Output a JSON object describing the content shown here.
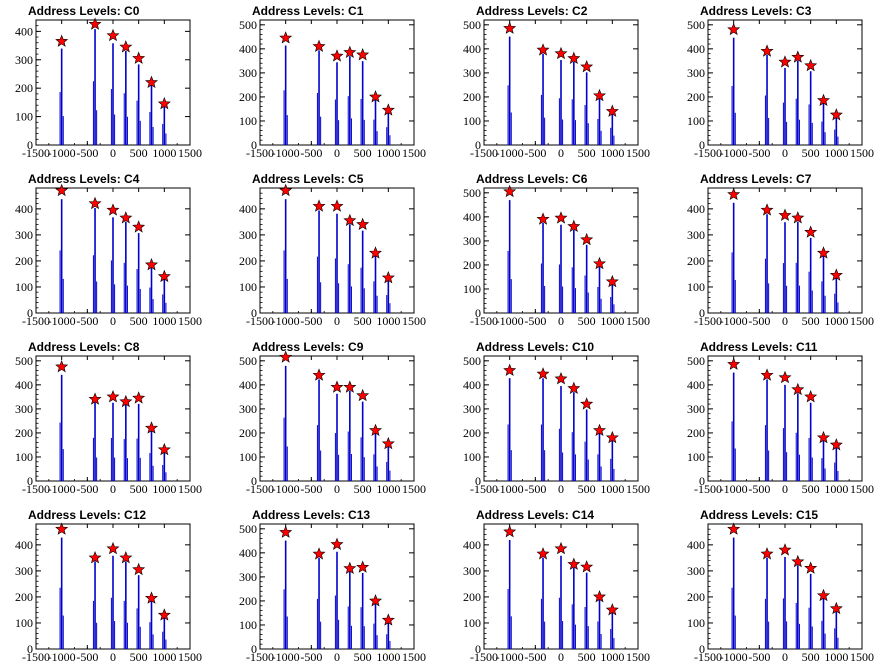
{
  "chart_data": [
    {
      "type": "bar",
      "title": "Address Levels: C0",
      "peaks": [
        {
          "x": -1000,
          "y": 365
        },
        {
          "x": -350,
          "y": 425
        },
        {
          "x": 0,
          "y": 385
        },
        {
          "x": 250,
          "y": 345
        },
        {
          "x": 500,
          "y": 305
        },
        {
          "x": 750,
          "y": 220
        },
        {
          "x": 1000,
          "y": 145
        }
      ],
      "ylim": [
        0,
        440
      ],
      "yticks": [
        0,
        100,
        200,
        300,
        400
      ]
    },
    {
      "type": "bar",
      "title": "Address Levels: C1",
      "peaks": [
        {
          "x": -1000,
          "y": 445
        },
        {
          "x": -350,
          "y": 410
        },
        {
          "x": 0,
          "y": 370
        },
        {
          "x": 250,
          "y": 385
        },
        {
          "x": 500,
          "y": 375
        },
        {
          "x": 750,
          "y": 200
        },
        {
          "x": 1000,
          "y": 145
        }
      ],
      "ylim": [
        0,
        520
      ],
      "yticks": [
        0,
        100,
        200,
        300,
        400,
        500
      ]
    },
    {
      "type": "bar",
      "title": "Address Levels: C2",
      "peaks": [
        {
          "x": -1000,
          "y": 485
        },
        {
          "x": -350,
          "y": 395
        },
        {
          "x": 0,
          "y": 380
        },
        {
          "x": 250,
          "y": 360
        },
        {
          "x": 500,
          "y": 325
        },
        {
          "x": 750,
          "y": 205
        },
        {
          "x": 1000,
          "y": 140
        }
      ],
      "ylim": [
        0,
        520
      ],
      "yticks": [
        0,
        100,
        200,
        300,
        400,
        500
      ]
    },
    {
      "type": "bar",
      "title": "Address Levels: C3",
      "peaks": [
        {
          "x": -1000,
          "y": 480
        },
        {
          "x": -350,
          "y": 390
        },
        {
          "x": 0,
          "y": 345
        },
        {
          "x": 250,
          "y": 365
        },
        {
          "x": 500,
          "y": 330
        },
        {
          "x": 750,
          "y": 185
        },
        {
          "x": 1000,
          "y": 125
        }
      ],
      "ylim": [
        0,
        520
      ],
      "yticks": [
        0,
        100,
        200,
        300,
        400,
        500
      ]
    },
    {
      "type": "bar",
      "title": "Address Levels: C4",
      "peaks": [
        {
          "x": -1000,
          "y": 470
        },
        {
          "x": -350,
          "y": 420
        },
        {
          "x": 0,
          "y": 395
        },
        {
          "x": 250,
          "y": 365
        },
        {
          "x": 500,
          "y": 330
        },
        {
          "x": 750,
          "y": 185
        },
        {
          "x": 1000,
          "y": 140
        }
      ],
      "ylim": [
        0,
        480
      ],
      "yticks": [
        0,
        100,
        200,
        300,
        400
      ]
    },
    {
      "type": "bar",
      "title": "Address Levels: C5",
      "peaks": [
        {
          "x": -1000,
          "y": 470
        },
        {
          "x": -350,
          "y": 410
        },
        {
          "x": 0,
          "y": 410
        },
        {
          "x": 250,
          "y": 355
        },
        {
          "x": 500,
          "y": 340
        },
        {
          "x": 750,
          "y": 230
        },
        {
          "x": 1000,
          "y": 135
        }
      ],
      "ylim": [
        0,
        480
      ],
      "yticks": [
        0,
        100,
        200,
        300,
        400
      ]
    },
    {
      "type": "bar",
      "title": "Address Levels: C6",
      "peaks": [
        {
          "x": -1000,
          "y": 505
        },
        {
          "x": -350,
          "y": 390
        },
        {
          "x": 0,
          "y": 395
        },
        {
          "x": 250,
          "y": 360
        },
        {
          "x": 500,
          "y": 305
        },
        {
          "x": 750,
          "y": 205
        },
        {
          "x": 1000,
          "y": 130
        }
      ],
      "ylim": [
        0,
        520
      ],
      "yticks": [
        0,
        100,
        200,
        300,
        400,
        500
      ]
    },
    {
      "type": "bar",
      "title": "Address Levels: C7",
      "peaks": [
        {
          "x": -1000,
          "y": 455
        },
        {
          "x": -350,
          "y": 395
        },
        {
          "x": 0,
          "y": 375
        },
        {
          "x": 250,
          "y": 365
        },
        {
          "x": 500,
          "y": 310
        },
        {
          "x": 750,
          "y": 230
        },
        {
          "x": 1000,
          "y": 145
        }
      ],
      "ylim": [
        0,
        480
      ],
      "yticks": [
        0,
        100,
        200,
        300,
        400
      ]
    },
    {
      "type": "bar",
      "title": "Address Levels: C8",
      "peaks": [
        {
          "x": -1000,
          "y": 475
        },
        {
          "x": -350,
          "y": 340
        },
        {
          "x": 0,
          "y": 350
        },
        {
          "x": 250,
          "y": 330
        },
        {
          "x": 500,
          "y": 345
        },
        {
          "x": 750,
          "y": 220
        },
        {
          "x": 1000,
          "y": 130
        }
      ],
      "ylim": [
        0,
        520
      ],
      "yticks": [
        0,
        100,
        200,
        300,
        400,
        500
      ]
    },
    {
      "type": "bar",
      "title": "Address Levels: C9",
      "peaks": [
        {
          "x": -1000,
          "y": 515
        },
        {
          "x": -350,
          "y": 440
        },
        {
          "x": 0,
          "y": 390
        },
        {
          "x": 250,
          "y": 390
        },
        {
          "x": 500,
          "y": 355
        },
        {
          "x": 750,
          "y": 210
        },
        {
          "x": 1000,
          "y": 155
        }
      ],
      "ylim": [
        0,
        520
      ],
      "yticks": [
        0,
        100,
        200,
        300,
        400,
        500
      ]
    },
    {
      "type": "bar",
      "title": "Address Levels: C10",
      "peaks": [
        {
          "x": -1000,
          "y": 460
        },
        {
          "x": -350,
          "y": 445
        },
        {
          "x": 0,
          "y": 425
        },
        {
          "x": 250,
          "y": 385
        },
        {
          "x": 500,
          "y": 320
        },
        {
          "x": 750,
          "y": 210
        },
        {
          "x": 1000,
          "y": 180
        }
      ],
      "ylim": [
        0,
        520
      ],
      "yticks": [
        0,
        100,
        200,
        300,
        400,
        500
      ]
    },
    {
      "type": "bar",
      "title": "Address Levels: C11",
      "peaks": [
        {
          "x": -1000,
          "y": 485
        },
        {
          "x": -350,
          "y": 440
        },
        {
          "x": 0,
          "y": 430
        },
        {
          "x": 250,
          "y": 380
        },
        {
          "x": 500,
          "y": 350
        },
        {
          "x": 750,
          "y": 180
        },
        {
          "x": 1000,
          "y": 150
        }
      ],
      "ylim": [
        0,
        520
      ],
      "yticks": [
        0,
        100,
        200,
        300,
        400,
        500
      ]
    },
    {
      "type": "bar",
      "title": "Address Levels: C12",
      "peaks": [
        {
          "x": -1000,
          "y": 460
        },
        {
          "x": -350,
          "y": 350
        },
        {
          "x": 0,
          "y": 385
        },
        {
          "x": 250,
          "y": 350
        },
        {
          "x": 500,
          "y": 305
        },
        {
          "x": 750,
          "y": 195
        },
        {
          "x": 1000,
          "y": 130
        }
      ],
      "ylim": [
        0,
        480
      ],
      "yticks": [
        0,
        100,
        200,
        300,
        400
      ]
    },
    {
      "type": "bar",
      "title": "Address Levels: C13",
      "peaks": [
        {
          "x": -1000,
          "y": 485
        },
        {
          "x": -350,
          "y": 395
        },
        {
          "x": 0,
          "y": 435
        },
        {
          "x": 250,
          "y": 335
        },
        {
          "x": 500,
          "y": 340
        },
        {
          "x": 750,
          "y": 200
        },
        {
          "x": 1000,
          "y": 120
        }
      ],
      "ylim": [
        0,
        520
      ],
      "yticks": [
        0,
        100,
        200,
        300,
        400,
        500
      ]
    },
    {
      "type": "bar",
      "title": "Address Levels: C14",
      "peaks": [
        {
          "x": -1000,
          "y": 450
        },
        {
          "x": -350,
          "y": 365
        },
        {
          "x": 0,
          "y": 385
        },
        {
          "x": 250,
          "y": 325
        },
        {
          "x": 500,
          "y": 315
        },
        {
          "x": 750,
          "y": 200
        },
        {
          "x": 1000,
          "y": 150
        }
      ],
      "ylim": [
        0,
        480
      ],
      "yticks": [
        0,
        100,
        200,
        300,
        400
      ]
    },
    {
      "type": "bar",
      "title": "Address Levels: C15",
      "peaks": [
        {
          "x": -1000,
          "y": 460
        },
        {
          "x": -350,
          "y": 365
        },
        {
          "x": 0,
          "y": 380
        },
        {
          "x": 250,
          "y": 335
        },
        {
          "x": 500,
          "y": 310
        },
        {
          "x": 750,
          "y": 205
        },
        {
          "x": 1000,
          "y": 155
        }
      ],
      "ylim": [
        0,
        480
      ],
      "yticks": [
        0,
        100,
        200,
        300,
        400
      ]
    }
  ],
  "shared": {
    "xlim": [
      -1500,
      1500
    ],
    "xticks": [
      "-1500",
      "-1000",
      "-500",
      "0",
      "500",
      "1000",
      "1500"
    ],
    "bar_color": "#0000cc",
    "marker_color": "#ff0000",
    "marker": "star"
  }
}
